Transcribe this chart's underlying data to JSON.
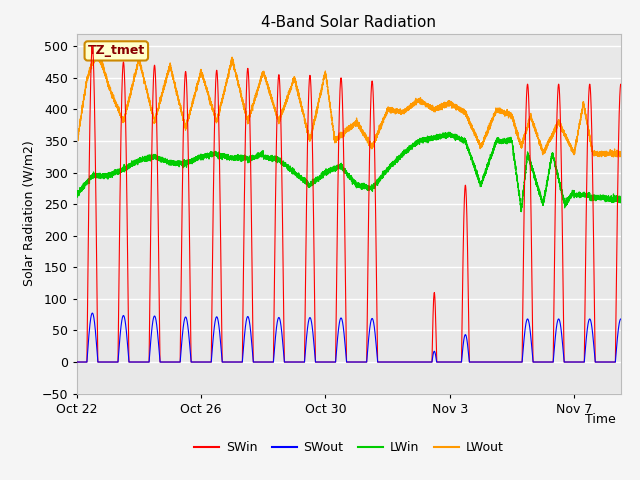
{
  "title": "4-Band Solar Radiation",
  "xlabel": "Time",
  "ylabel": "Solar Radiation (W/m2)",
  "ylim": [
    -50,
    520
  ],
  "xlim_days": [
    0,
    17.5
  ],
  "plot_bg_color": "#e8e8e8",
  "grid_color": "#ffffff",
  "tz_label": "TZ_tmet",
  "legend_entries": [
    "SWin",
    "SWout",
    "LWin",
    "LWout"
  ],
  "legend_colors": [
    "#ff0000",
    "#0000ff",
    "#00cc00",
    "#ff9900"
  ],
  "yticks": [
    -50,
    0,
    50,
    100,
    150,
    200,
    250,
    300,
    350,
    400,
    450,
    500
  ],
  "xtick_labels": [
    "Oct 22",
    "Oct 26",
    "Oct 30",
    "Nov 3",
    "Nov 7"
  ],
  "xtick_positions": [
    0,
    4,
    8,
    12,
    16
  ],
  "title_fontsize": 11,
  "axis_fontsize": 9,
  "tick_fontsize": 9
}
